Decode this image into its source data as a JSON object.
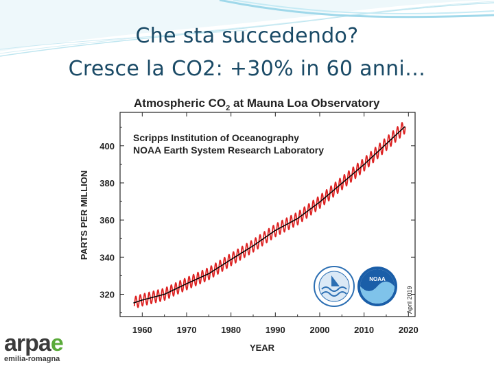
{
  "slide": {
    "title_line1": "Che sta succedendo?",
    "title_line2": "Cresce la CO2: +30% in 60 anni…"
  },
  "logo": {
    "name_main": "arpa",
    "name_accent": "e",
    "subtitle": "emilia-romagna",
    "accent_color": "#5aaa3a"
  },
  "badges": {
    "left_icon": "scripps-seal-icon",
    "right_icon": "noaa-logo-icon",
    "noaa_label": "NOAA"
  },
  "chart_data": {
    "type": "line",
    "title": "Atmospheric CO₂ at Mauna Loa Observatory",
    "title_prefix": "Atmospheric CO",
    "title_sub": "2",
    "title_suffix": " at Mauna Loa Observatory",
    "annotation_line1": "Scripps Institution of Oceanography",
    "annotation_line2": "NOAA Earth System Research Laboratory",
    "date_label": "April 2019",
    "xlabel": "YEAR",
    "ylabel": "PARTS PER MILLION",
    "xlim": [
      1955,
      2021.5
    ],
    "ylim": [
      308,
      418
    ],
    "xticks": [
      1960,
      1970,
      1980,
      1990,
      2000,
      2010,
      2020
    ],
    "yticks": [
      320,
      340,
      360,
      380,
      400
    ],
    "grid": false,
    "series": [
      {
        "kind": "trend",
        "color": "#000000",
        "x": [
          1958,
          1960,
          1965,
          1970,
          1975,
          1980,
          1985,
          1990,
          1995,
          2000,
          2005,
          2010,
          2015,
          2019.3
        ],
        "values": [
          315.3,
          316.9,
          320.0,
          325.7,
          331.1,
          338.7,
          346.1,
          354.4,
          360.8,
          369.7,
          379.8,
          389.9,
          401.0,
          410.5
        ]
      },
      {
        "kind": "monthly",
        "color": "#dd2222",
        "seasonal_amplitude": [
          3.2,
          3.6
        ],
        "x_range": [
          1958.2,
          2019.3
        ]
      }
    ]
  }
}
